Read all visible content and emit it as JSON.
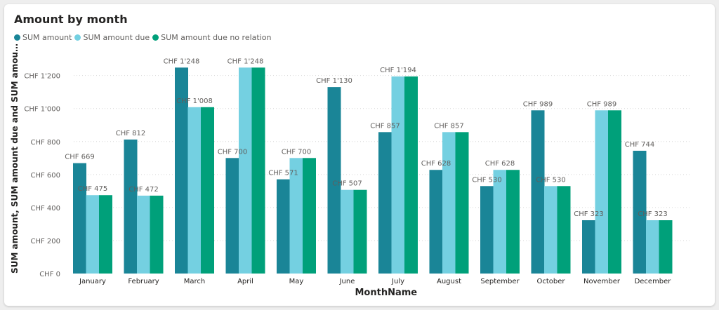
{
  "chart_data": {
    "type": "bar",
    "title": "Amount by month",
    "xlabel": "MonthName",
    "ylabel": "SUM amount, SUM amount due and SUM amount due and SUM amount d...",
    "ylim": [
      0,
      1300
    ],
    "yticks": [
      0,
      200,
      400,
      600,
      800,
      1000,
      1200
    ],
    "ytick_labels": [
      "CHF 0",
      "CHF 200",
      "CHF 400",
      "CHF 600",
      "CHF 800",
      "CHF 1'000",
      "CHF 1'200"
    ],
    "grid": true,
    "legend_position": "top-left",
    "categories": [
      "January",
      "February",
      "March",
      "April",
      "May",
      "June",
      "July",
      "August",
      "September",
      "October",
      "November",
      "December"
    ],
    "series": [
      {
        "name": "SUM amount",
        "color": "#1a8597",
        "values": [
          669,
          812,
          1248,
          700,
          571,
          1130,
          857,
          628,
          530,
          989,
          323,
          744
        ],
        "labels": [
          "CHF 669",
          "CHF 812",
          "CHF 1'248",
          "CHF 700",
          "CHF 571",
          "CHF 1'130",
          "CHF 857",
          "CHF 628",
          "CHF 530",
          "CHF 989",
          "CHF 323",
          "CHF 744"
        ]
      },
      {
        "name": "SUM amount due",
        "color": "#74d0e1",
        "values": [
          475,
          472,
          1008,
          1248,
          700,
          507,
          1194,
          857,
          628,
          530,
          989,
          323
        ],
        "labels": [
          "CHF 475",
          "CHF 472",
          "CHF 1'008",
          "CHF 1'248",
          "CHF 700",
          "CHF 507",
          "CHF 1'194",
          "CHF 857",
          "CHF 628",
          "CHF 530",
          "CHF 989",
          "CHF 323"
        ]
      },
      {
        "name": "SUM amount due no relation",
        "color": "#00a07a",
        "values": [
          475,
          472,
          1008,
          1248,
          700,
          507,
          1194,
          857,
          628,
          530,
          989,
          323
        ],
        "labels": []
      }
    ]
  }
}
